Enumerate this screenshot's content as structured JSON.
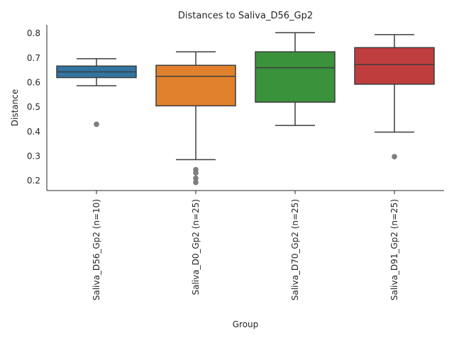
{
  "chart_data": {
    "type": "box",
    "title": "Distances to Saliva_D56_Gp2",
    "xlabel": "Group",
    "ylabel": "Distance",
    "ylim": [
      0.16,
      0.835
    ],
    "yticks": [
      "0.2",
      "0.3",
      "0.4",
      "0.5",
      "0.6",
      "0.7",
      "0.8"
    ],
    "grid": false,
    "categories": [
      "Saliva_D56_Gp2 (n=10)",
      "Saliva_D0_Gp2 (n=25)",
      "Saliva_D70_Gp2 (n=25)",
      "Saliva_D91_Gp2 (n=25)"
    ],
    "boxes": [
      {
        "whisker_low": 0.587,
        "q1": 0.62,
        "median": 0.643,
        "q3": 0.667,
        "whisker_high": 0.697,
        "outliers": [
          0.43
        ],
        "color": "#3274a1"
      },
      {
        "whisker_low": 0.286,
        "q1": 0.505,
        "median": 0.625,
        "q3": 0.67,
        "whisker_high": 0.725,
        "outliers": [
          0.245,
          0.232,
          0.21,
          0.193
        ],
        "color": "#e1812c"
      },
      {
        "whisker_low": 0.425,
        "q1": 0.52,
        "median": 0.66,
        "q3": 0.725,
        "whisker_high": 0.803,
        "outliers": [],
        "color": "#3a923a"
      },
      {
        "whisker_low": 0.398,
        "q1": 0.593,
        "median": 0.673,
        "q3": 0.742,
        "whisker_high": 0.795,
        "outliers": [
          0.298
        ],
        "color": "#c03d3e"
      }
    ]
  }
}
